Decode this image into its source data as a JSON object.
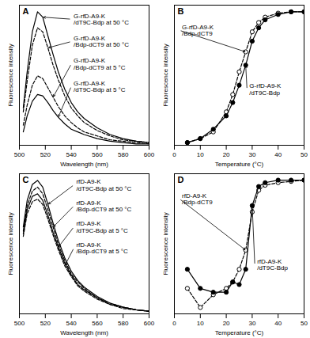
{
  "chart_data": [
    {
      "type": "line",
      "title": "A",
      "xlabel": "Wavelength (nm)",
      "ylabel": "Fluorescence intensity",
      "xlim": [
        500,
        600
      ],
      "xticks": [
        500,
        520,
        540,
        560,
        580,
        600
      ],
      "ylim": [
        0,
        1.05
      ],
      "yticks": [],
      "tick_labels": "x",
      "x": [
        503,
        506,
        510,
        514,
        518,
        522,
        526,
        530,
        535,
        540,
        545,
        550,
        560,
        570,
        580,
        590,
        600
      ],
      "series": [
        {
          "name": "G-rfD-A9-K/dT9C-Bdp at 50 °C",
          "color": "#000000",
          "line_style": "solid",
          "values": [
            0.28,
            0.55,
            0.85,
            1.0,
            0.96,
            0.82,
            0.68,
            0.55,
            0.42,
            0.32,
            0.25,
            0.2,
            0.13,
            0.08,
            0.05,
            0.03,
            0.02
          ]
        },
        {
          "name": "G-rfD-A9-K/Bdp-dCT9 at 50 °C",
          "color": "#000000",
          "line_style": "dashed",
          "values": [
            0.25,
            0.48,
            0.75,
            0.88,
            0.85,
            0.73,
            0.6,
            0.49,
            0.37,
            0.28,
            0.22,
            0.17,
            0.11,
            0.07,
            0.04,
            0.03,
            0.02
          ]
        },
        {
          "name": "G-rfD-A9-K/Bdp-dCT9 at 5 °C",
          "color": "#000000",
          "line_style": "dashed",
          "values": [
            0.15,
            0.3,
            0.45,
            0.52,
            0.5,
            0.43,
            0.36,
            0.29,
            0.22,
            0.17,
            0.13,
            0.1,
            0.07,
            0.04,
            0.03,
            0.02,
            0.01
          ]
        },
        {
          "name": "G-rfD-A9-K/dT9C-Bdp at 5 °C",
          "color": "#000000",
          "line_style": "solid",
          "values": [
            0.1,
            0.22,
            0.33,
            0.38,
            0.37,
            0.32,
            0.26,
            0.21,
            0.16,
            0.12,
            0.1,
            0.08,
            0.05,
            0.03,
            0.02,
            0.01,
            0.01
          ]
        }
      ]
    },
    {
      "type": "line",
      "title": "B",
      "xlabel": "Temperature (°C)",
      "ylabel": "Fluorescence intensity",
      "xlim": [
        0,
        50
      ],
      "xticks": [
        0,
        10,
        20,
        30,
        40,
        50
      ],
      "ylim": [
        0,
        1.05
      ],
      "yticks": [],
      "tick_labels": "x",
      "x": [
        5,
        10,
        15,
        20,
        22.5,
        25,
        27.5,
        30,
        32.5,
        35,
        40,
        45,
        50
      ],
      "series": [
        {
          "name": "G-rfD-A9-K/Bdp-dCT9",
          "color": "#000000",
          "line_style": "dashed",
          "marker": "open circle",
          "values": [
            0.02,
            0.05,
            0.1,
            0.25,
            0.38,
            0.55,
            0.7,
            0.85,
            0.92,
            0.96,
            0.99,
            1.0,
            1.0
          ]
        },
        {
          "name": "G-rfD-A9-K/dT9C-Bdp",
          "color": "#000000",
          "line_style": "solid",
          "marker": "filled circle",
          "values": [
            0.02,
            0.05,
            0.12,
            0.22,
            0.32,
            0.45,
            0.6,
            0.78,
            0.88,
            0.94,
            0.98,
            1.0,
            1.0
          ]
        }
      ]
    },
    {
      "type": "line",
      "title": "C",
      "xlabel": "Wavelength (nm)",
      "ylabel": "Fluorescence intensity",
      "xlim": [
        500,
        600
      ],
      "xticks": [
        500,
        520,
        540,
        560,
        580,
        600
      ],
      "ylim": [
        0,
        1.05
      ],
      "yticks": [],
      "tick_labels": "x",
      "x": [
        503,
        506,
        510,
        514,
        518,
        522,
        526,
        530,
        535,
        540,
        545,
        550,
        560,
        570,
        580,
        590,
        600
      ],
      "series": [
        {
          "name": "rfD-A9-K/dT9C-Bdp at 50 °C",
          "color": "#000000",
          "line_style": "solid",
          "values": [
            0.65,
            0.85,
            0.97,
            1.0,
            0.95,
            0.82,
            0.68,
            0.55,
            0.42,
            0.32,
            0.25,
            0.2,
            0.13,
            0.08,
            0.05,
            0.03,
            0.02
          ]
        },
        {
          "name": "rfD-A9-K/Bdp-dCT9 at 50 °C",
          "color": "#000000",
          "line_style": "dashed",
          "values": [
            0.62,
            0.81,
            0.92,
            0.95,
            0.9,
            0.78,
            0.65,
            0.52,
            0.4,
            0.3,
            0.24,
            0.19,
            0.12,
            0.08,
            0.05,
            0.03,
            0.02
          ]
        },
        {
          "name": "rfD-A9-K/dT9C-Bdp at 5 °C",
          "color": "#000000",
          "line_style": "solid",
          "values": [
            0.6,
            0.78,
            0.88,
            0.9,
            0.85,
            0.74,
            0.61,
            0.5,
            0.38,
            0.29,
            0.22,
            0.18,
            0.12,
            0.07,
            0.05,
            0.03,
            0.02
          ]
        },
        {
          "name": "rfD-A9-K/Bdp-dCT9 at 5 °C",
          "color": "#000000",
          "line_style": "dashed",
          "values": [
            0.58,
            0.75,
            0.84,
            0.86,
            0.82,
            0.71,
            0.59,
            0.48,
            0.36,
            0.28,
            0.21,
            0.17,
            0.11,
            0.07,
            0.04,
            0.03,
            0.02
          ]
        }
      ]
    },
    {
      "type": "line",
      "title": "D",
      "xlabel": "Temperature (°C)",
      "ylabel": "Fluorescence intensity",
      "xlim": [
        0,
        50
      ],
      "xticks": [
        0,
        10,
        20,
        30,
        40,
        50
      ],
      "ylim": [
        -0.05,
        1.05
      ],
      "yticks": [],
      "tick_labels": "x",
      "x": [
        5,
        10,
        15,
        20,
        22.5,
        25,
        27.5,
        30,
        32.5,
        35,
        40,
        45,
        50
      ],
      "series": [
        {
          "name": "rfD-A9-K/Bdp-dCT9",
          "color": "#000000",
          "line_style": "dashed",
          "marker": "open circle",
          "values": [
            0.15,
            0.0,
            0.1,
            0.15,
            0.2,
            0.3,
            0.45,
            0.75,
            0.92,
            0.96,
            0.98,
            0.99,
            1.0
          ]
        },
        {
          "name": "rfD-A9-K/dT9C-Bdp",
          "color": "#000000",
          "line_style": "solid",
          "marker": "filled circle",
          "values": [
            0.3,
            0.15,
            0.12,
            0.12,
            0.2,
            0.18,
            0.3,
            0.8,
            0.95,
            0.98,
            1.0,
            1.0,
            1.0
          ]
        }
      ]
    }
  ]
}
